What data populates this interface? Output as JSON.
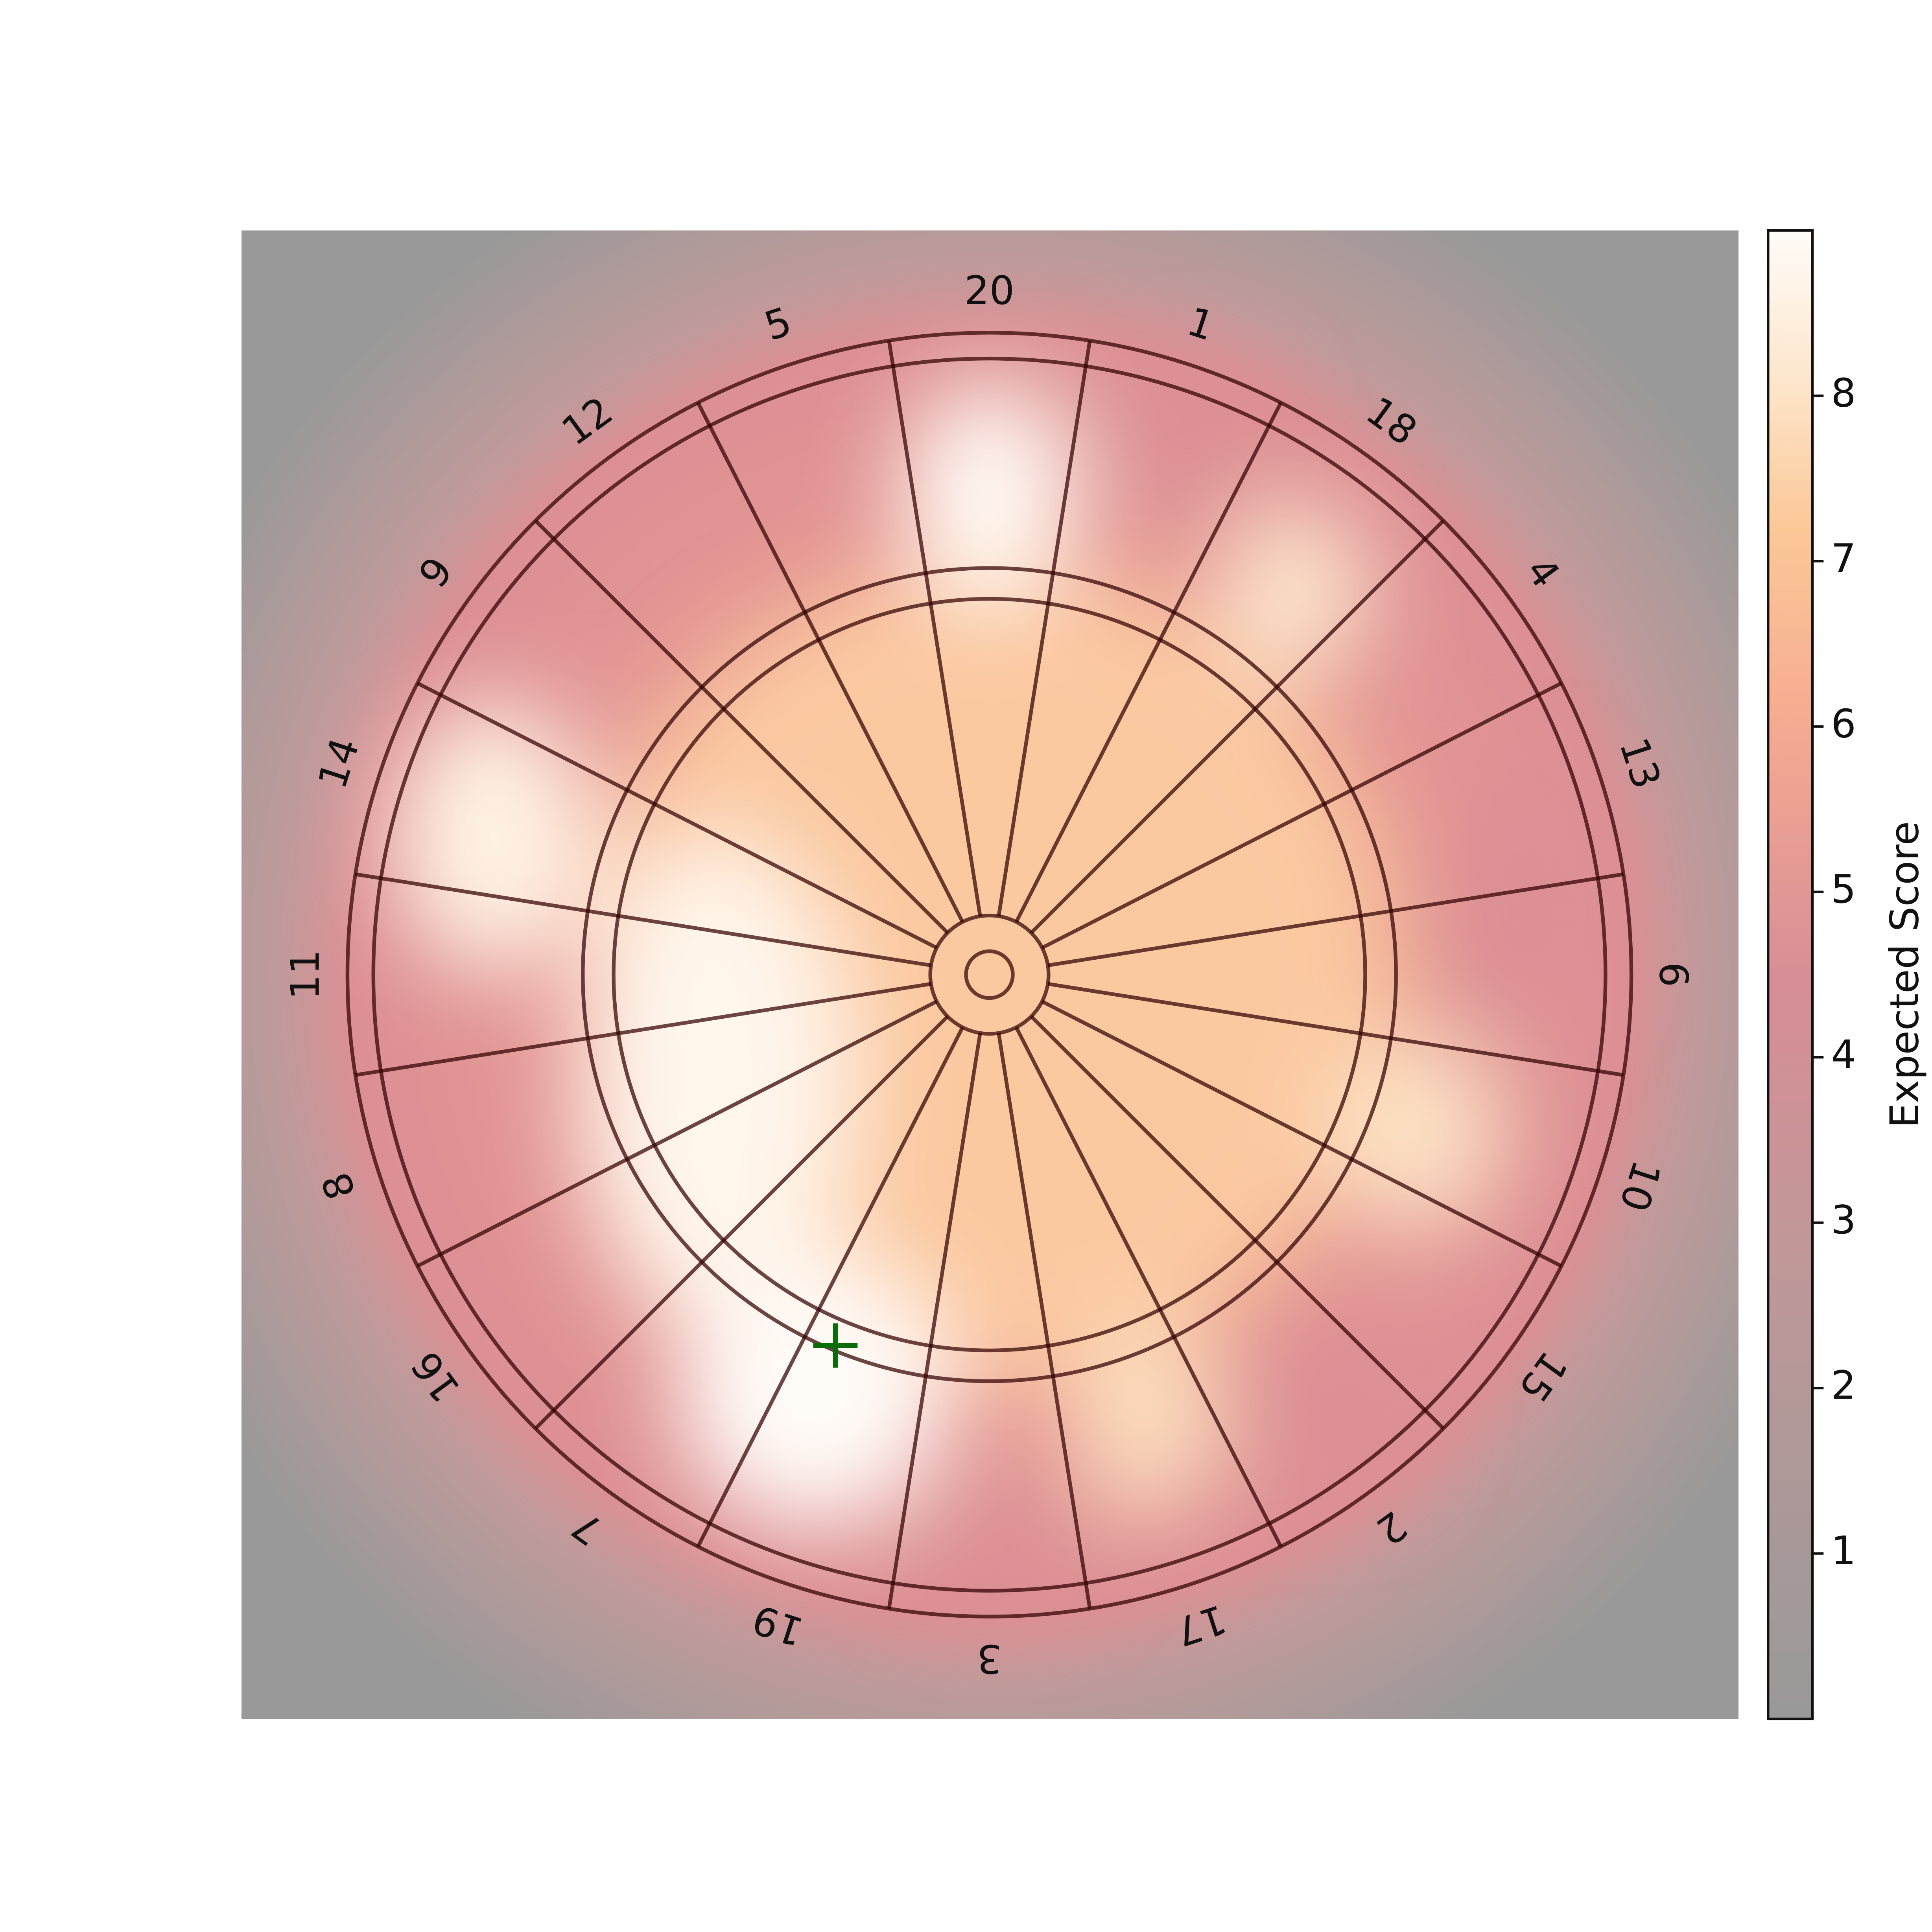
{
  "chart_data": {
    "type": "heatmap",
    "sector_labels": [
      20,
      1,
      18,
      4,
      13,
      6,
      10,
      15,
      2,
      17,
      3,
      19,
      7,
      16,
      8,
      11,
      14,
      9,
      12,
      5
    ],
    "colorbar": {
      "label": "Expected Score",
      "clim": [
        0,
        9
      ],
      "ticks": [
        1,
        2,
        3,
        4,
        5,
        6,
        7,
        8
      ]
    }
  }
}
